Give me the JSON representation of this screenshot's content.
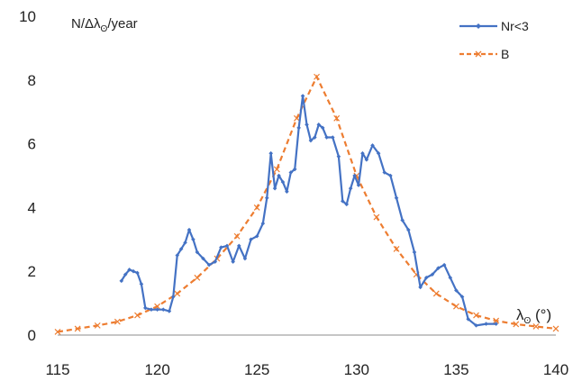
{
  "chart_data": {
    "type": "line",
    "ylabel": "N/Δλ",
    "ylabel_sub": "ʘ",
    "ylabel_suffix": "/year",
    "xlabel": "λ",
    "xlabel_sub": "ʘ",
    "xlabel_suffix": " (°)",
    "xlim": [
      115,
      140
    ],
    "ylim": [
      0,
      10
    ],
    "xticks": [
      "115",
      "120",
      "125",
      "130",
      "135",
      "140"
    ],
    "yticks": [
      "0",
      "2",
      "4",
      "6",
      "8",
      "10"
    ],
    "grid": false,
    "legend_position": "top-right",
    "colors": {
      "series1": "#4472C4",
      "series2": "#ED7D31"
    },
    "series": [
      {
        "name": "Nr<3",
        "style": "solid-diamond-markers",
        "points": [
          [
            118.2,
            1.7
          ],
          [
            118.4,
            1.9
          ],
          [
            118.6,
            2.05
          ],
          [
            118.8,
            2.0
          ],
          [
            119.0,
            1.95
          ],
          [
            119.2,
            1.6
          ],
          [
            119.4,
            0.85
          ],
          [
            119.7,
            0.8
          ],
          [
            120.0,
            0.8
          ],
          [
            120.3,
            0.8
          ],
          [
            120.6,
            0.75
          ],
          [
            120.8,
            1.2
          ],
          [
            121.0,
            2.5
          ],
          [
            121.2,
            2.7
          ],
          [
            121.4,
            2.9
          ],
          [
            121.6,
            3.3
          ],
          [
            121.8,
            3.0
          ],
          [
            122.0,
            2.6
          ],
          [
            122.3,
            2.4
          ],
          [
            122.6,
            2.2
          ],
          [
            122.9,
            2.3
          ],
          [
            123.2,
            2.75
          ],
          [
            123.5,
            2.8
          ],
          [
            123.8,
            2.3
          ],
          [
            124.1,
            2.8
          ],
          [
            124.4,
            2.4
          ],
          [
            124.7,
            3.0
          ],
          [
            125.0,
            3.1
          ],
          [
            125.3,
            3.5
          ],
          [
            125.5,
            4.3
          ],
          [
            125.7,
            5.7
          ],
          [
            125.9,
            4.6
          ],
          [
            126.1,
            5.0
          ],
          [
            126.3,
            4.8
          ],
          [
            126.5,
            4.5
          ],
          [
            126.7,
            5.1
          ],
          [
            126.9,
            5.2
          ],
          [
            127.1,
            6.5
          ],
          [
            127.3,
            7.5
          ],
          [
            127.5,
            6.6
          ],
          [
            127.7,
            6.1
          ],
          [
            127.9,
            6.2
          ],
          [
            128.1,
            6.6
          ],
          [
            128.3,
            6.5
          ],
          [
            128.5,
            6.2
          ],
          [
            128.8,
            6.2
          ],
          [
            129.1,
            5.6
          ],
          [
            129.3,
            4.2
          ],
          [
            129.5,
            4.1
          ],
          [
            129.7,
            4.6
          ],
          [
            129.9,
            5.0
          ],
          [
            130.1,
            4.7
          ],
          [
            130.3,
            5.7
          ],
          [
            130.5,
            5.5
          ],
          [
            130.8,
            5.95
          ],
          [
            131.1,
            5.7
          ],
          [
            131.4,
            5.1
          ],
          [
            131.7,
            5.0
          ],
          [
            132.0,
            4.3
          ],
          [
            132.3,
            3.6
          ],
          [
            132.6,
            3.3
          ],
          [
            132.9,
            2.6
          ],
          [
            133.2,
            1.5
          ],
          [
            133.5,
            1.8
          ],
          [
            133.8,
            1.9
          ],
          [
            134.1,
            2.1
          ],
          [
            134.4,
            2.2
          ],
          [
            134.7,
            1.8
          ],
          [
            135.0,
            1.4
          ],
          [
            135.3,
            1.2
          ],
          [
            135.6,
            0.5
          ],
          [
            136.0,
            0.3
          ],
          [
            136.5,
            0.35
          ],
          [
            137.0,
            0.35
          ]
        ]
      },
      {
        "name": "B",
        "style": "dashed-x-markers",
        "points": [
          [
            115.0,
            0.1
          ],
          [
            116.0,
            0.2
          ],
          [
            117.0,
            0.3
          ],
          [
            118.0,
            0.42
          ],
          [
            119.0,
            0.62
          ],
          [
            120.0,
            0.9
          ],
          [
            121.0,
            1.3
          ],
          [
            122.0,
            1.8
          ],
          [
            123.0,
            2.4
          ],
          [
            124.0,
            3.1
          ],
          [
            125.0,
            4.0
          ],
          [
            126.0,
            5.2
          ],
          [
            127.0,
            6.8
          ],
          [
            128.0,
            8.1
          ],
          [
            129.0,
            6.8
          ],
          [
            130.0,
            5.0
          ],
          [
            131.0,
            3.7
          ],
          [
            132.0,
            2.7
          ],
          [
            133.0,
            1.9
          ],
          [
            134.0,
            1.3
          ],
          [
            135.0,
            0.9
          ],
          [
            136.0,
            0.62
          ],
          [
            137.0,
            0.45
          ],
          [
            138.0,
            0.34
          ],
          [
            139.0,
            0.27
          ],
          [
            140.0,
            0.2
          ]
        ]
      }
    ]
  }
}
